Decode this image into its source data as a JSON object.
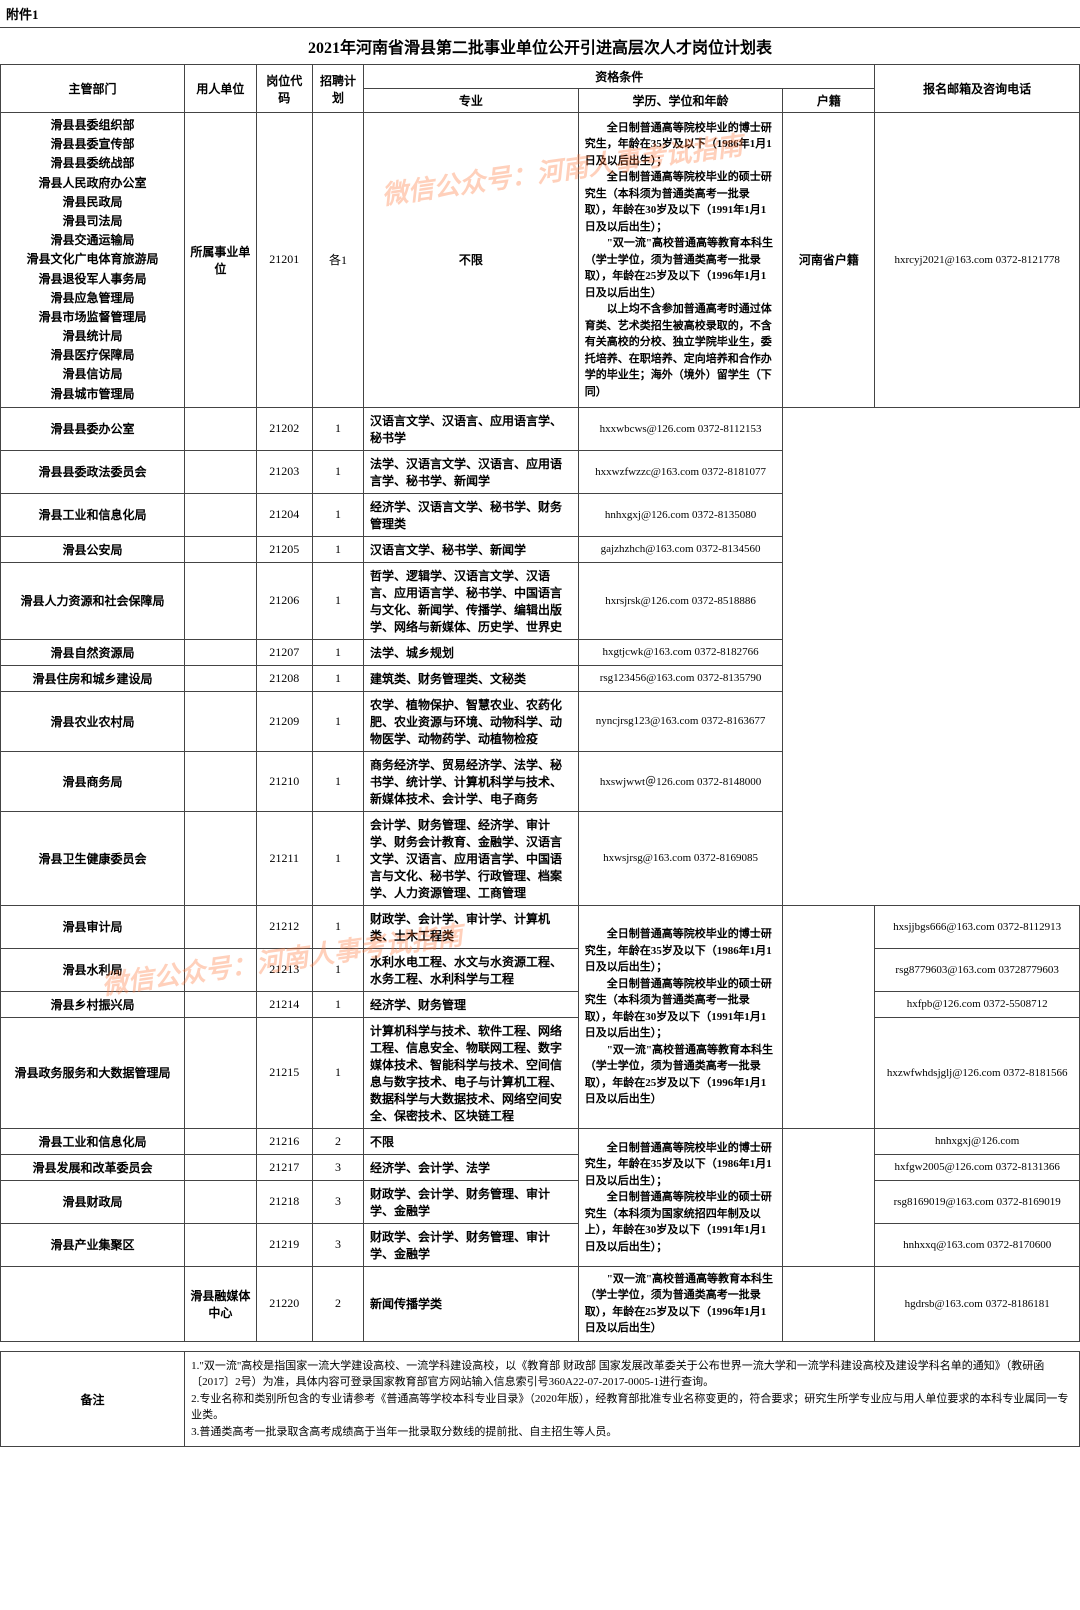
{
  "topLabel": "附件1",
  "title": "2021年河南省滑县第二批事业单位公开引进高层次人才岗位计划表",
  "watermark": "微信公众号：河南人事考试指南",
  "headers": {
    "dept": "主管部门",
    "unit": "用人单位",
    "code": "岗位代码",
    "plan": "招聘计划",
    "qual": "资格条件",
    "major": "专业",
    "edu": "学历、学位和年龄",
    "hukou": "户籍",
    "contact": "报名邮箱及咨询电话"
  },
  "group1": {
    "deptList": [
      "滑县县委组织部",
      "滑县县委宣传部",
      "滑县县委统战部",
      "滑县人民政府办公室",
      "滑县民政局",
      "滑县司法局",
      "滑县交通运输局",
      "滑县文化广电体育旅游局",
      "滑县退役军人事务局",
      "滑县应急管理局",
      "滑县市场监督管理局",
      "滑县统计局",
      "滑县医疗保障局",
      "滑县信访局",
      "滑县城市管理局"
    ],
    "unit": "所属事业单位",
    "code": "21201",
    "plan": "各1",
    "major": "不限",
    "hukou": "河南省户籍",
    "contact": "hxrcyj2021@163.com 0372-8121778"
  },
  "eduBlock1": "　　全日制普通高等院校毕业的博士研究生，年龄在35岁及以下（1986年1月1日及以后出生）；\n　　全日制普通高等院校毕业的硕士研究生（本科须为普通类高考一批录取），年龄在30岁及以下（1991年1月1日及以后出生）；\n　　\"双一流\"高校普通高等教育本科生（学士学位，须为普通类高考一批录取），年龄在25岁及以下（1996年1月1日及以后出生）\n　　以上均不含参加普通高考时通过体育类、艺术类招生被高校录取的，不含有关高校的分校、独立学院毕业生，委托培养、在职培养、定向培养和合作办学的毕业生；海外（境外）留学生（下同）",
  "rows1": [
    {
      "dept": "滑县县委办公室",
      "code": "21202",
      "plan": "1",
      "major": "汉语言文学、汉语言、应用语言学、秘书学",
      "contact": "hxxwbcws@126.com 0372-8112153"
    },
    {
      "dept": "滑县县委政法委员会",
      "code": "21203",
      "plan": "1",
      "major": "法学、汉语言文学、汉语言、应用语言学、秘书学、新闻学",
      "contact": "hxxwzfwzzc@163.com 0372-8181077"
    },
    {
      "dept": "滑县工业和信息化局",
      "code": "21204",
      "plan": "1",
      "major": "经济学、汉语言文学、秘书学、财务管理类",
      "contact": "hnhxgxj@126.com 0372-8135080"
    },
    {
      "dept": "滑县公安局",
      "code": "21205",
      "plan": "1",
      "major": "汉语言文学、秘书学、新闻学",
      "contact": "gajzhzhch@163.com 0372-8134560"
    },
    {
      "dept": "滑县人力资源和社会保障局",
      "code": "21206",
      "plan": "1",
      "major": "哲学、逻辑学、汉语言文学、汉语言、应用语言学、秘书学、中国语言与文化、新闻学、传播学、编辑出版学、网络与新媒体、历史学、世界史",
      "contact": "hxrsjrsk@126.com 0372-8518886"
    },
    {
      "dept": "滑县自然资源局",
      "code": "21207",
      "plan": "1",
      "major": "法学、城乡规划",
      "contact": "hxgtjcwk@163.com 0372-8182766"
    },
    {
      "dept": "滑县住房和城乡建设局",
      "code": "21208",
      "plan": "1",
      "major": "建筑类、财务管理类、文秘类",
      "contact": "rsg123456@163.com 0372-8135790"
    },
    {
      "dept": "滑县农业农村局",
      "code": "21209",
      "plan": "1",
      "major": "农学、植物保护、智慧农业、农药化肥、农业资源与环境、动物科学、动物医学、动物药学、动植物检疫",
      "contact": "nyncjrsg123@163.com 0372-8163677"
    },
    {
      "dept": "滑县商务局",
      "code": "21210",
      "plan": "1",
      "major": "商务经济学、贸易经济学、法学、秘书学、统计学、计算机科学与技术、新媒体技术、会计学、电子商务",
      "contact": "hxswjwwt＠126.com 0372-8148000"
    },
    {
      "dept": "滑县卫生健康委员会",
      "code": "21211",
      "plan": "1",
      "major": "会计学、财务管理、经济学、审计学、财务会计教育、金融学、汉语言文学、汉语言、应用语言学、中国语言与文化、秘书学、行政管理、档案学、人力资源管理、工商管理",
      "contact": "hxwsjrsg@163.com 0372-8169085"
    }
  ],
  "eduBlock2": "　　全日制普通高等院校毕业的博士研究生，年龄在35岁及以下（1986年1月1日及以后出生）；\n　　全日制普通高等院校毕业的硕士研究生（本科须为普通类高考一批录取），年龄在30岁及以下（1991年1月1日及以后出生）；\n　　\"双一流\"高校普通高等教育本科生（学士学位，须为普通类高考一批录取），年龄在25岁及以下（1996年1月1日及以后出生）",
  "rows2": [
    {
      "dept": "滑县审计局",
      "code": "21212",
      "plan": "1",
      "major": "财政学、会计学、审计学、计算机类、土木工程类",
      "contact": "hxsjjbgs666@163.com 0372-8112913"
    },
    {
      "dept": "滑县水利局",
      "code": "21213",
      "plan": "1",
      "major": "水利水电工程、水文与水资源工程、水务工程、水利科学与工程",
      "contact": "rsg8779603@163.com 03728779603"
    },
    {
      "dept": "滑县乡村振兴局",
      "code": "21214",
      "plan": "1",
      "major": "经济学、财务管理",
      "contact": "hxfpb@126.com 0372-5508712"
    },
    {
      "dept": "滑县政务服务和大数据管理局",
      "code": "21215",
      "plan": "1",
      "major": "计算机科学与技术、软件工程、网络工程、信息安全、物联网工程、数字媒体技术、智能科学与技术、空间信息与数字技术、电子与计算机工程、数据科学与大数据技术、网络空间安全、保密技术、区块链工程",
      "contact": "hxzwfwhdsjglj@126.com 0372-8181566"
    }
  ],
  "eduBlock3": "　　全日制普通高等院校毕业的博士研究生，年龄在35岁及以下（1986年1月1日及以后出生）；\n　　全日制普通高等院校毕业的硕士研究生（本科须为国家统招四年制及以上），年龄在30岁及以下（1991年1月1日及以后出生）；\n　　\"双一流\"高校普通高等教育本科生（学士学位，须为普通类高考一批录取），年龄在25岁及以下（1996年1月1日及以后出生）",
  "rows3": [
    {
      "dept": "滑县工业和信息化局",
      "code": "21216",
      "plan": "2",
      "major": "不限",
      "contact": "hnhxgxj@126.com"
    },
    {
      "dept": "滑县发展和改革委员会",
      "code": "21217",
      "plan": "3",
      "major": "经济学、会计学、法学",
      "contact": "hxfgw2005@126.com 0372-8131366"
    },
    {
      "dept": "滑县财政局",
      "code": "21218",
      "plan": "3",
      "major": "财政学、会计学、财务管理、审计学、金融学",
      "contact": "rsg8169019@163.com 0372-8169019"
    },
    {
      "dept": "滑县产业集聚区",
      "code": "21219",
      "plan": "3",
      "major": "财政学、会计学、财务管理、审计学、金融学",
      "contact": "hnhxxq@163.com 0372-8170600"
    }
  ],
  "row20": {
    "unit": "滑县融媒体中心",
    "code": "21220",
    "plan": "2",
    "major": "新闻传播学类",
    "contact": "hgdrsb@163.com 0372-8186181"
  },
  "notes": {
    "label": "备注",
    "body": "1.\"双一流\"高校是指国家一流大学建设高校、一流学科建设高校，以《教育部 财政部 国家发展改革委关于公布世界一流大学和一流学科建设高校及建设学科名单的通知》（教研函〔2017〕2号）为准，具体内容可登录国家教育部官方网站输入信息索引号360A22-07-2017-0005-1进行查询。\n2.专业名称和类别所包含的专业请参考《普通高等学校本科专业目录》（2020年版），经教育部批准专业名称变更的，符合要求；研究生所学专业应与用人单位要求的本科专业属同一专业类。\n3.普通类高考一批录取含高考成绩高于当年一批录取分数线的提前批、自主招生等人员。"
  },
  "colWidths": [
    "180",
    "70",
    "55",
    "50",
    "200",
    "200",
    "90",
    "200"
  ]
}
